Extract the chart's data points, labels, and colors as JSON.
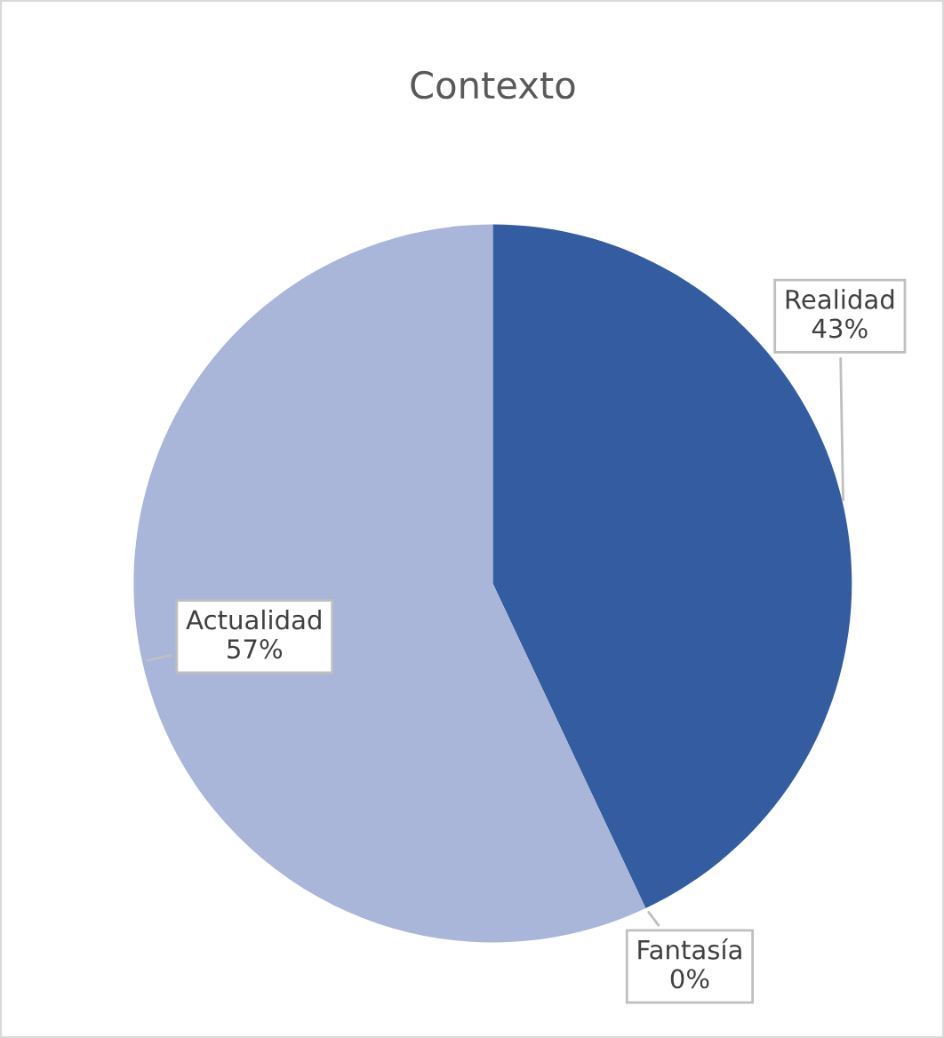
{
  "chart_data": {
    "type": "pie",
    "title": "Contexto",
    "categories": [
      "Realidad",
      "Fantasía",
      "Actualidad"
    ],
    "values": [
      43,
      0,
      57
    ],
    "value_labels": [
      "43%",
      "0%",
      "57%"
    ],
    "colors": [
      "#345ca0",
      "#6f86c2",
      "#a9b5d9"
    ]
  }
}
